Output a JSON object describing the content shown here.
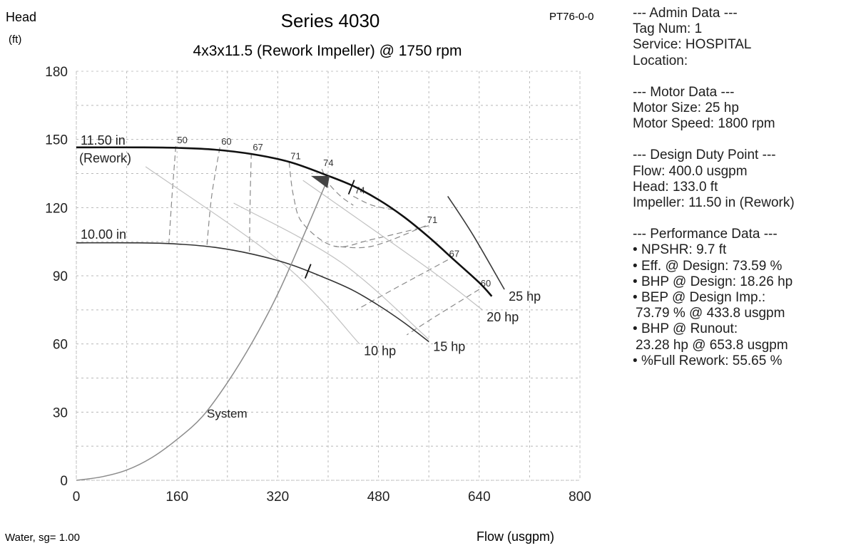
{
  "chart_data": {
    "type": "line",
    "title": "Series 4030",
    "subtitle": "4x3x11.5 (Rework Impeller) @ 1750 rpm",
    "code": "PT76-0-0",
    "ylabel": "Head",
    "yunit": "(ft)",
    "xlabel": "Flow (usgpm)",
    "footnote": "Water, sg= 1.00",
    "xlim": [
      0,
      800
    ],
    "ylim": [
      0,
      180
    ],
    "xticks": [
      0,
      160,
      320,
      480,
      640,
      800
    ],
    "yticks": [
      0,
      30,
      60,
      90,
      120,
      150,
      180
    ],
    "grid": true,
    "series": [
      {
        "name": "11.50 in",
        "label_line2": "(Rework)",
        "x": [
          0,
          100,
          160,
          220,
          280,
          340,
          400,
          440,
          480,
          520,
          560,
          600,
          640,
          660
        ],
        "y": [
          146.5,
          146.5,
          146.3,
          145.5,
          143.5,
          140,
          134,
          129.5,
          123.5,
          116,
          107,
          97,
          87,
          81
        ]
      },
      {
        "name": "10.00 in",
        "x": [
          0,
          100,
          160,
          220,
          280,
          340,
          400,
          440,
          480,
          520,
          560
        ],
        "y": [
          104.5,
          104.5,
          104,
          102.5,
          99.5,
          95,
          88.5,
          83.5,
          77,
          69.5,
          61
        ]
      },
      {
        "name": "System",
        "x": [
          0,
          40,
          80,
          120,
          160,
          200,
          240,
          280,
          320,
          360,
          400
        ],
        "y": [
          0,
          1.5,
          4.5,
          10,
          18,
          28,
          43,
          61,
          82,
          107,
          133
        ]
      }
    ],
    "efficiency_lines": [
      {
        "label": "50",
        "x": [
          158,
          152,
          147
        ],
        "y": [
          147,
          125,
          104
        ]
      },
      {
        "label": "60",
        "x": [
          228,
          215,
          207
        ],
        "y": [
          146.5,
          125,
          102
        ]
      },
      {
        "label": "67",
        "x": [
          278,
          276,
          275
        ],
        "y": [
          144,
          122,
          99.5
        ]
      },
      {
        "label": "71",
        "x": [
          338,
          345,
          360,
          410,
          470,
          560
        ],
        "y": [
          140,
          125,
          113,
          103,
          106,
          112
        ]
      },
      {
        "label": "74",
        "x": [
          390,
          400,
          420,
          440
        ],
        "y": [
          137,
          131,
          125,
          121
        ]
      },
      {
        "label": "74",
        "x": [
          440,
          470,
          505
        ],
        "y": [
          125,
          121,
          119
        ]
      },
      {
        "label": "71",
        "x": [
          555,
          470,
          410
        ],
        "y": [
          112,
          103,
          103
        ]
      },
      {
        "label": "67",
        "x": [
          590,
          510,
          445
        ],
        "y": [
          97,
          85,
          75
        ]
      },
      {
        "label": "60",
        "x": [
          640,
          570,
          525
        ],
        "y": [
          84,
          72,
          64
        ]
      }
    ],
    "power_lines": [
      {
        "label": "10 hp",
        "x": [
          110,
          330,
          450
        ],
        "y": [
          138,
          95,
          60
        ]
      },
      {
        "label": "15 hp",
        "x": [
          250,
          420,
          560
        ],
        "y": [
          122,
          96,
          62
        ]
      },
      {
        "label": "20 hp",
        "x": [
          360,
          560,
          645
        ],
        "y": [
          132,
          93,
          75
        ]
      },
      {
        "label": "25 hp",
        "x": [
          590,
          630,
          680
        ],
        "y": [
          125,
          108,
          84
        ]
      }
    ],
    "design_point": {
      "flow": 400.0,
      "head": 133.0
    },
    "tick_marks": [
      {
        "x": 437,
        "y": 129
      },
      {
        "x": 368,
        "y": 92
      }
    ]
  },
  "panel": {
    "admin_header": "--- Admin Data ---",
    "tag": "Tag Num: 1",
    "service": "Service: HOSPITAL",
    "location": "Location:",
    "motor_header": "--- Motor Data ---",
    "motor_size": "Motor Size: 25 hp",
    "motor_speed": "Motor Speed: 1800 rpm",
    "design_header": "--- Design Duty Point ---",
    "flow": "Flow: 400.0 usgpm",
    "head": "Head: 133.0 ft",
    "impeller": "Impeller: 11.50 in (Rework)",
    "perf_header": "--- Performance Data ---",
    "npshr": "NPSHR: 9.7 ft",
    "eff": "Eff. @ Design: 73.59 %",
    "bhp_design": "BHP @ Design: 18.26 hp",
    "bep_line1": "BEP @ Design Imp.:",
    "bep_line2": "73.79 %  @ 433.8 usgpm",
    "bhp_runout_line1": "BHP @ Runout:",
    "bhp_runout_line2": "23.28 hp @ 653.8 usgpm",
    "full_rework": "%Full Rework: 55.65 %"
  }
}
